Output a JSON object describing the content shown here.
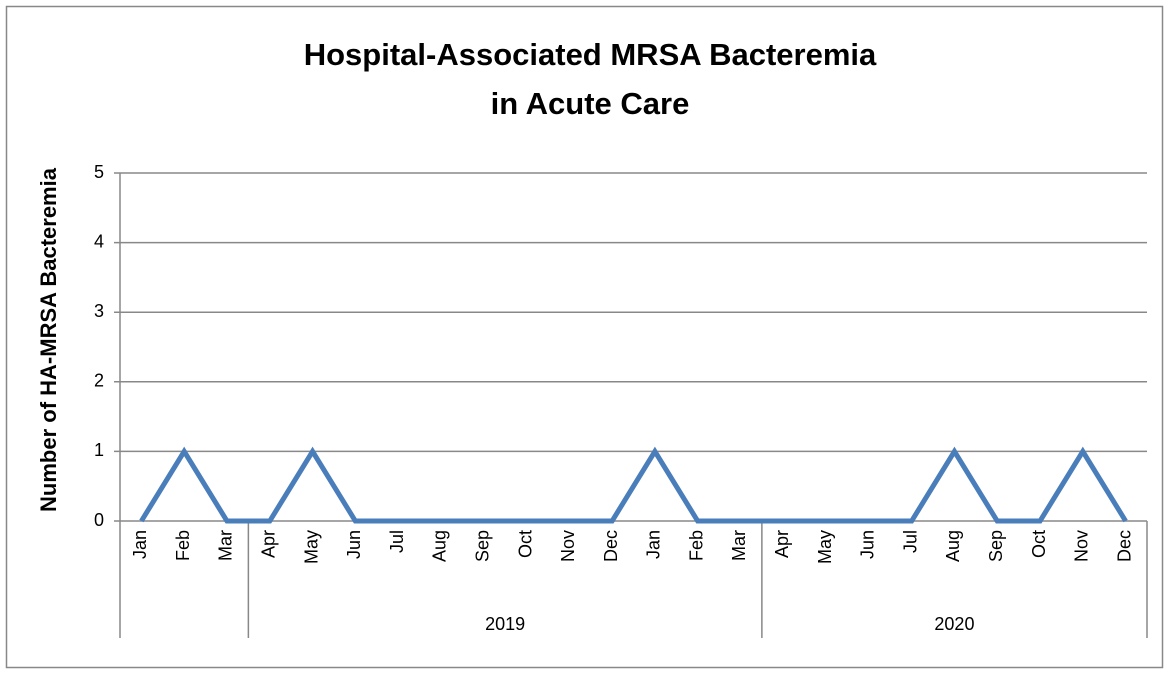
{
  "chart_data": {
    "type": "line",
    "title": [
      "Hospital-Associated  MRSA Bacteremia",
      "in Acute Care"
    ],
    "y_label": "Number of HA-MRSA Bacteremia",
    "categories": [
      "Jan",
      "Feb",
      "Mar",
      "Apr",
      "May",
      "Jun",
      "Jul",
      "Aug",
      "Sep",
      "Oct",
      "Nov",
      "Dec",
      "Jan",
      "Feb",
      "Mar",
      "Apr",
      "May",
      "Jun",
      "Jul",
      "Aug",
      "Sep",
      "Oct",
      "Nov",
      "Dec"
    ],
    "groups": [
      {
        "label": null,
        "span": 3
      },
      {
        "label": "2019",
        "span": 12
      },
      {
        "label": "2020",
        "span": 9
      }
    ],
    "series": [
      {
        "name": "HA-MRSA Bacteremia",
        "color": "#4a7ebb",
        "values": [
          0,
          1,
          0,
          0,
          1,
          0,
          0,
          0,
          0,
          0,
          0,
          0,
          1,
          0,
          0,
          0,
          0,
          0,
          0,
          1,
          0,
          0,
          1,
          0
        ]
      }
    ],
    "ylim": [
      0,
      5
    ],
    "yticks": [
      0,
      1,
      2,
      3,
      4,
      5
    ],
    "grid": true
  }
}
